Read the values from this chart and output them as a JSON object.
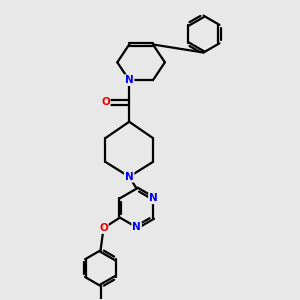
{
  "bg_color": "#e8e8e8",
  "bond_color": "#000000",
  "N_color": "#0000ee",
  "O_color": "#ee0000",
  "line_width": 1.6,
  "figsize": [
    3.0,
    3.0
  ],
  "dpi": 100,
  "xlim": [
    0,
    10
  ],
  "ylim": [
    0,
    10
  ]
}
